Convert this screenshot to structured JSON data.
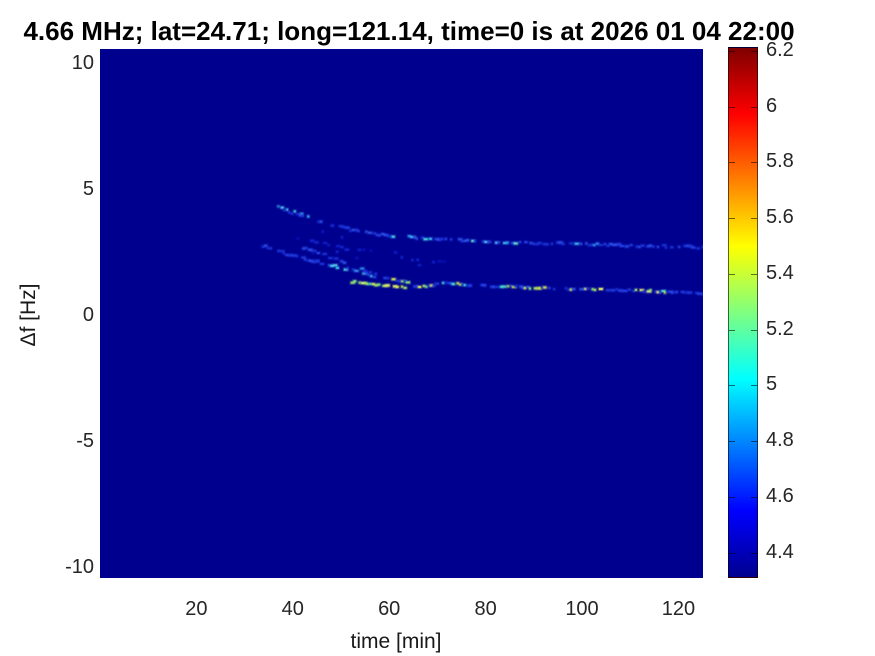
{
  "title": "4.66 MHz;  lat=24.71; long=121.14, time=0 is at 2026 01 04 22:00",
  "axes": {
    "xlabel": "time [min]",
    "ylabel": "Δf [Hz]",
    "x_ticks": [
      20,
      40,
      60,
      80,
      100,
      120
    ],
    "y_ticks": [
      10,
      5,
      0,
      -5,
      -10
    ]
  },
  "colorbar": {
    "ticks": [
      6.2,
      6,
      5.8,
      5.6,
      5.4,
      5.2,
      5,
      4.8,
      4.6,
      4.4
    ],
    "min": 4.3,
    "max": 6.21,
    "colormap": "jet"
  },
  "colors": {
    "background": "#ffffff",
    "plot_background": "#00008f",
    "title_color": "#000000",
    "tick_color": "#262626"
  },
  "chart_data": {
    "type": "heatmap",
    "title": "4.66 MHz;  lat=24.71; long=121.14, time=0 is at 2026 01 04 22:00",
    "xlabel": "time [min]",
    "ylabel": "Δf [Hz]",
    "xlim": [
      0,
      125.5
    ],
    "ylim": [
      -10.45,
      10.55
    ],
    "clim": [
      4.3,
      6.21
    ],
    "colormap": "jet",
    "grid": false,
    "background_value": 4.3,
    "description": "Doppler shift spectrogram; uniform low-power background with faint dotted echo traces appearing after t=33 min, descending and flattening into two quasi-horizontal bands near 2.8 Hz and 1.0 Hz that persist to t=125 min",
    "palettes": {
      "dim": [
        "#0912b4",
        "#101cc2",
        "#1526cd"
      ],
      "base": [
        "#1b2fd4",
        "#2440e0",
        "#1832cf",
        "#2b4fe6",
        "#2038d8"
      ],
      "bright": [
        "#2f8ae8",
        "#3cb8ec",
        "#48d4e4",
        "#62e2cc",
        "#55c8f0"
      ],
      "hot": [
        "#86e87e",
        "#bada4f",
        "#dce952",
        "#9fe86e",
        "#e8f06a",
        "#4ad8d0"
      ]
    },
    "traces": [
      {
        "name": "upper-onset-dots",
        "mode": "dots",
        "palette": "bright",
        "dots": [
          [
            36.8,
            4.35
          ],
          [
            37.5,
            4.3
          ],
          [
            38.6,
            4.22
          ],
          [
            40.2,
            4.15
          ],
          [
            41.5,
            4.05
          ],
          [
            43,
            3.95
          ]
        ]
      },
      {
        "name": "upper-main-band",
        "mode": "line",
        "palette": "base",
        "step": 0.55,
        "skip": 0.45,
        "jitter": 0.05,
        "hot_zones": [
          [
            60,
            69
          ],
          [
            76,
            86
          ],
          [
            97,
            103
          ]
        ],
        "hot_palette": "bright",
        "hot_prob": 0.5,
        "pts": [
          [
            38,
            4.2
          ],
          [
            41,
            4.0
          ],
          [
            44,
            3.82
          ],
          [
            47,
            3.65
          ],
          [
            50,
            3.5
          ],
          [
            53,
            3.38
          ],
          [
            56,
            3.28
          ],
          [
            59,
            3.2
          ],
          [
            62,
            3.16
          ],
          [
            65,
            3.1
          ],
          [
            68,
            3.06
          ],
          [
            72,
            3.02
          ],
          [
            76,
            2.99
          ],
          [
            80,
            2.96
          ],
          [
            85,
            2.93
          ],
          [
            90,
            2.9
          ],
          [
            95,
            2.88
          ],
          [
            100,
            2.86
          ],
          [
            105,
            2.83
          ],
          [
            110,
            2.8
          ],
          [
            115,
            2.78
          ],
          [
            120,
            2.75
          ],
          [
            125,
            2.72
          ]
        ]
      },
      {
        "name": "mid-wisp-1",
        "mode": "line",
        "palette": "dim",
        "step": 0.9,
        "skip": 0.55,
        "jitter": 0.06,
        "hot_zones": [],
        "hot_palette": "dim",
        "hot_prob": 0,
        "pts": [
          [
            40,
            3.12
          ],
          [
            44,
            2.94
          ],
          [
            48,
            2.78
          ],
          [
            52,
            2.64
          ],
          [
            56,
            2.52
          ]
        ]
      },
      {
        "name": "mid-wisp-2",
        "mode": "line",
        "palette": "dim",
        "step": 1.1,
        "skip": 0.6,
        "jitter": 0.06,
        "hot_zones": [],
        "hot_palette": "dim",
        "hot_prob": 0,
        "pts": [
          [
            58,
            2.42
          ],
          [
            63,
            2.3
          ],
          [
            68,
            2.2
          ],
          [
            74,
            2.1
          ]
        ]
      },
      {
        "name": "lower-left-branch",
        "mode": "line",
        "palette": "base",
        "step": 0.55,
        "skip": 0.4,
        "jitter": 0.05,
        "hot_zones": [
          [
            47,
            58
          ]
        ],
        "hot_palette": "bright",
        "hot_prob": 0.5,
        "pts": [
          [
            33,
            2.82
          ],
          [
            36,
            2.62
          ],
          [
            39,
            2.42
          ],
          [
            42,
            2.28
          ],
          [
            45,
            2.14
          ],
          [
            48,
            2.0
          ],
          [
            51,
            1.86
          ],
          [
            54,
            1.7
          ],
          [
            57,
            1.58
          ],
          [
            60,
            1.5
          ]
        ]
      },
      {
        "name": "second-descending-branch",
        "mode": "line",
        "palette": "base",
        "step": 0.6,
        "skip": 0.45,
        "jitter": 0.05,
        "hot_zones": [
          [
            53,
            59
          ]
        ],
        "hot_palette": "bright",
        "hot_prob": 0.45,
        "pts": [
          [
            42,
            2.7
          ],
          [
            45,
            2.5
          ],
          [
            48,
            2.3
          ],
          [
            51,
            2.08
          ],
          [
            54,
            1.86
          ],
          [
            57,
            1.66
          ],
          [
            59.5,
            1.55
          ]
        ]
      },
      {
        "name": "lower-bright-strand",
        "mode": "line",
        "palette": "hot",
        "step": 0.55,
        "skip": 0.3,
        "jitter": 0.04,
        "hot_zones": [],
        "hot_palette": "hot",
        "hot_prob": 0,
        "pts": [
          [
            52,
            1.36
          ],
          [
            55,
            1.26
          ],
          [
            58,
            1.2
          ],
          [
            61,
            1.17
          ],
          [
            64,
            1.14
          ]
        ]
      },
      {
        "name": "lower-main-band",
        "mode": "line",
        "palette": "base",
        "step": 0.5,
        "skip": 0.32,
        "jitter": 0.04,
        "hot_zones": [
          [
            59,
            76
          ],
          [
            82,
            104
          ],
          [
            110,
            118
          ]
        ],
        "hot_palette": "hot",
        "hot_prob": 0.45,
        "pts": [
          [
            60,
            1.45
          ],
          [
            62,
            1.4
          ],
          [
            64,
            1.28
          ],
          [
            66,
            1.12
          ],
          [
            68,
            1.2
          ],
          [
            71,
            1.3
          ],
          [
            74,
            1.26
          ],
          [
            78,
            1.21
          ],
          [
            82,
            1.17
          ],
          [
            86,
            1.15
          ],
          [
            90,
            1.12
          ],
          [
            95,
            1.09
          ],
          [
            100,
            1.06
          ],
          [
            106,
            1.03
          ],
          [
            112,
            1.0
          ],
          [
            118,
            0.96
          ],
          [
            125,
            0.9
          ]
        ]
      },
      {
        "name": "scattered-specks",
        "mode": "dots",
        "palette": "dim",
        "dots": [
          [
            46,
            3.35
          ],
          [
            50,
            3.12
          ],
          [
            56,
            2.6
          ],
          [
            61,
            2.52
          ],
          [
            66,
            2.02
          ],
          [
            44,
            2.5
          ],
          [
            49,
            2.55
          ],
          [
            53,
            2.3
          ]
        ]
      }
    ]
  }
}
